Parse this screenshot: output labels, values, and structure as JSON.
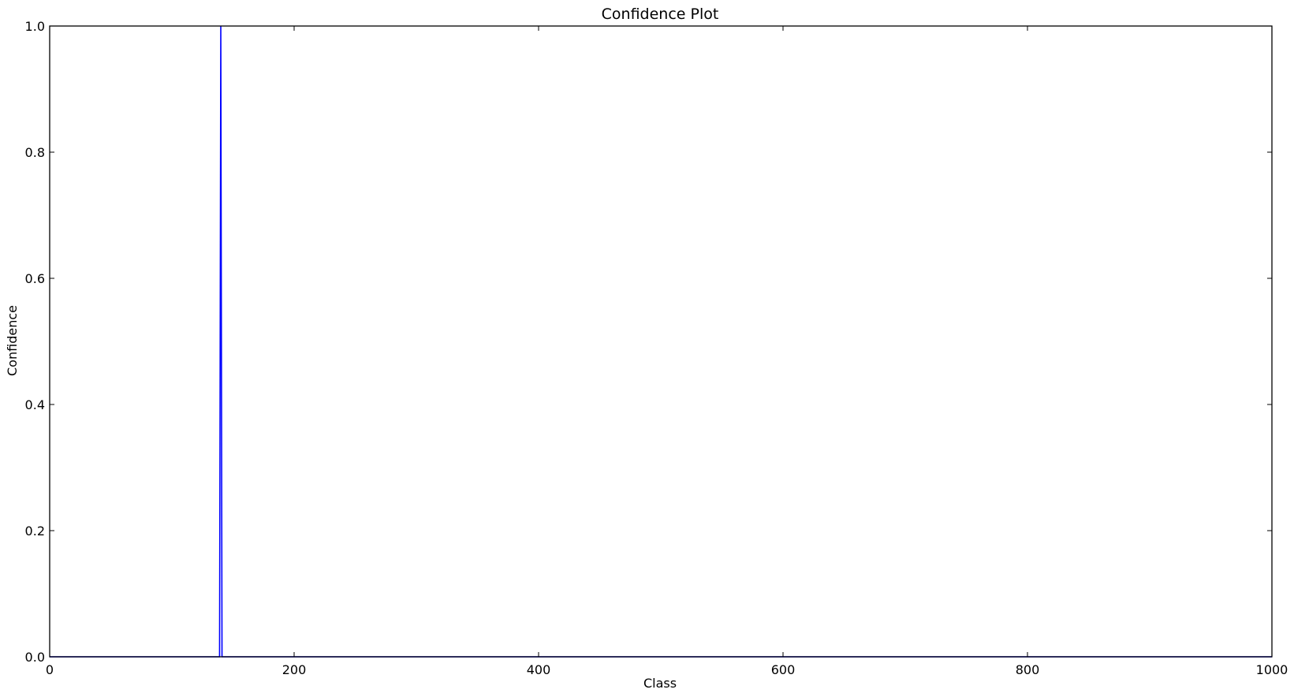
{
  "chart_data": {
    "type": "line",
    "title": "Confidence Plot",
    "xlabel": "Class",
    "ylabel": "Confidence",
    "xlim": [
      0,
      1000
    ],
    "ylim": [
      0,
      1.0
    ],
    "xticks": [
      0,
      200,
      400,
      600,
      800,
      1000
    ],
    "xtick_labels": [
      "0",
      "200",
      "400",
      "600",
      "800",
      "1000"
    ],
    "yticks": [
      0.0,
      0.2,
      0.4,
      0.6,
      0.8,
      1.0
    ],
    "ytick_labels": [
      "0.0",
      "0.2",
      "0.4",
      "0.6",
      "0.8",
      "1.0"
    ],
    "grid": false,
    "series": [
      {
        "color": "#0000ff",
        "x": [
          0,
          139,
          140,
          141,
          1000
        ],
        "y": [
          0,
          0,
          1.0,
          0,
          0
        ]
      }
    ]
  }
}
